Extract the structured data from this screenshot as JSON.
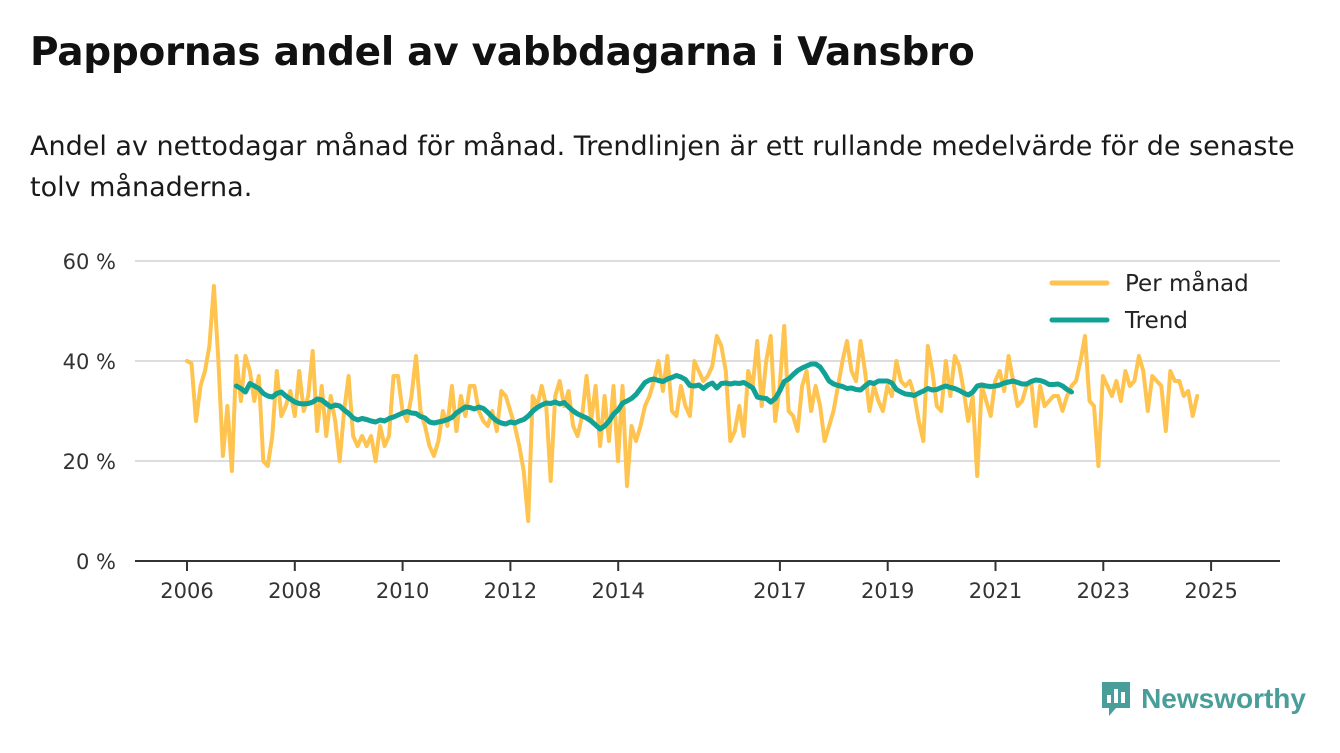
{
  "title": "Pappornas andel av vabbdagarna i Vansbro",
  "subtitle": "Andel av nettodagar månad för månad. Trendlinjen är ett rullande medelvärde för de senaste tolv månaderna.",
  "brand": {
    "name": "Newsworthy",
    "icon": "newsworthy-logo-icon",
    "color": "#4a9e9a"
  },
  "colors": {
    "monthly": "#ffc34f",
    "trend": "#12a195",
    "grid": "#dddddd",
    "axis": "#333333"
  },
  "chart_data": {
    "type": "line",
    "title": "Pappornas andel av vabbdagarna i Vansbro",
    "xlabel": "",
    "ylabel": "",
    "xlim": [
      2005.8,
      2025.9
    ],
    "ylim": [
      0,
      60
    ],
    "y_ticks": [
      0,
      20,
      40,
      60
    ],
    "y_tick_labels": [
      "0 %",
      "20 %",
      "40 %",
      "60 %"
    ],
    "x_ticks": [
      2006,
      2008,
      2010,
      2012,
      2014,
      2017,
      2019,
      2021,
      2023,
      2025
    ],
    "x_tick_labels": [
      "2006",
      "2008",
      "2010",
      "2012",
      "2014",
      "2017",
      "2019",
      "2021",
      "2023",
      "2025"
    ],
    "grid": true,
    "legend": {
      "position": "top-right",
      "entries": [
        "Per månad",
        "Trend"
      ]
    },
    "series": [
      {
        "name": "Per månad",
        "x_start": 2006.0,
        "step": 0.0833,
        "values": [
          40,
          39.5,
          28,
          35,
          38,
          43,
          55,
          40,
          21,
          31,
          18,
          41,
          32,
          41,
          38,
          32,
          37,
          20,
          19,
          25,
          38,
          29,
          31,
          34,
          29,
          38,
          30,
          33,
          42,
          26,
          35,
          25,
          33,
          28,
          20,
          30,
          37,
          25,
          23,
          25,
          23,
          25,
          20,
          27,
          23,
          25,
          37,
          37,
          30,
          28,
          33,
          41,
          30,
          27,
          23,
          21,
          24,
          30,
          27,
          35,
          26,
          33,
          29,
          35,
          35,
          30,
          28,
          27,
          30,
          26,
          34,
          33,
          30,
          27,
          23,
          18,
          8,
          33,
          31,
          35,
          31,
          16,
          33,
          36,
          31,
          34,
          27,
          25,
          29,
          37,
          28,
          35,
          23,
          33,
          24,
          35,
          20,
          35,
          15,
          27,
          24,
          27,
          31,
          33,
          36,
          40,
          34,
          41,
          30,
          29,
          35,
          31,
          29,
          40,
          38,
          36,
          37,
          39,
          45,
          43,
          38,
          24,
          26,
          31,
          25,
          38,
          35,
          44,
          31,
          40,
          45,
          28,
          35,
          47,
          30,
          29,
          26,
          35,
          38,
          30,
          35,
          31,
          24,
          27,
          30,
          35,
          40,
          44,
          38,
          36,
          44,
          38,
          30,
          35,
          32,
          30,
          35,
          33,
          40,
          36,
          35,
          36,
          33,
          28,
          24,
          43,
          38,
          31,
          30,
          40,
          33,
          41,
          39,
          34,
          28,
          33,
          17,
          35,
          32,
          29,
          36,
          38,
          34,
          41,
          36,
          31,
          32,
          35,
          36,
          27,
          35,
          31,
          32,
          33,
          33,
          30,
          33,
          35,
          36,
          40,
          45,
          32,
          31,
          19,
          37,
          35,
          33,
          36,
          32,
          38,
          35,
          36,
          41,
          38,
          30,
          37,
          36,
          35,
          26,
          38,
          36,
          36,
          33,
          34,
          29,
          33
        ]
      },
      {
        "name": "Trend",
        "x_start": 2006.917,
        "step": 0.0833,
        "values": [
          35,
          34.5,
          33.8,
          35.5,
          35,
          34.5,
          33.5,
          33,
          32.8,
          33.5,
          33.8,
          33,
          32.4,
          31.8,
          31.5,
          31.4,
          31.5,
          31.8,
          32.4,
          32.2,
          31.5,
          30.8,
          31.2,
          31,
          30.2,
          29.5,
          28.6,
          28.2,
          28.5,
          28.3,
          28,
          27.8,
          28.2,
          28,
          28.5,
          28.8,
          29.2,
          29.6,
          29.9,
          29.6,
          29.5,
          28.9,
          28.6,
          27.8,
          27.6,
          27.8,
          28,
          28.3,
          28.7,
          29.6,
          30.2,
          30.8,
          30.7,
          30.4,
          30.8,
          30.5,
          29.7,
          28.8,
          28,
          27.6,
          27.4,
          27.8,
          27.6,
          28,
          28.3,
          29,
          30,
          30.7,
          31.2,
          31.6,
          31.5,
          31.8,
          31.4,
          31.7,
          30.8,
          30,
          29.4,
          29,
          28.6,
          28,
          27.2,
          26.4,
          27,
          28,
          29.4,
          30.2,
          31.6,
          32,
          32.5,
          33.3,
          34.5,
          35.7,
          36.2,
          36.4,
          36.1,
          35.9,
          36.4,
          36.7,
          37.1,
          36.8,
          36.3,
          35.1,
          35,
          35.2,
          34.5,
          35.2,
          35.6,
          34.6,
          35.5,
          35.6,
          35.4,
          35.6,
          35.5,
          35.7,
          35.2,
          34.6,
          32.8,
          32.6,
          32.5,
          31.8,
          32.5,
          34,
          35.9,
          36.4,
          37.3,
          38.1,
          38.6,
          39,
          39.4,
          39.4,
          38.8,
          37.5,
          36,
          35.4,
          35.1,
          34.9,
          34.5,
          34.6,
          34.3,
          34.2,
          35,
          35.7,
          35.5,
          36,
          36,
          36,
          35.6,
          34.3,
          33.8,
          33.4,
          33.3,
          33.1,
          33.6,
          34,
          34.5,
          34.2,
          34.3,
          34.7,
          35,
          34.7,
          34.5,
          34.1,
          33.6,
          33.2,
          33.8,
          35,
          35.2,
          35,
          34.9,
          35,
          35.2,
          35.6,
          35.8,
          36,
          35.7,
          35.4,
          35.4,
          35.9,
          36.2,
          36.1,
          35.8,
          35.3,
          35.3,
          35.4,
          35,
          34.3,
          33.8
        ]
      }
    ]
  }
}
